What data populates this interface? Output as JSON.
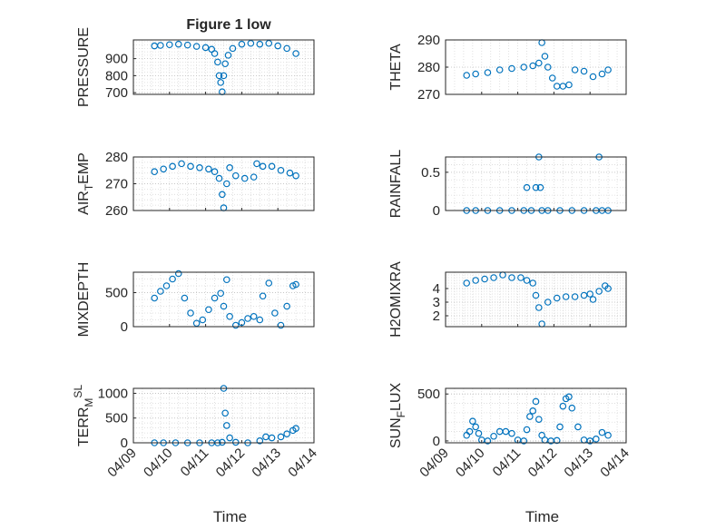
{
  "figure_title": "Figure 1 low",
  "x_axis_label": "Time",
  "x_tick_labels": [
    "04/09",
    "04/10",
    "04/11",
    "04/12",
    "04/13",
    "04/14"
  ],
  "colors": {
    "marker": "#0072BD",
    "axes": "#262626",
    "grid": "#d9d9d9"
  },
  "chart_data": [
    {
      "type": "scatter",
      "name": "PRESSURE",
      "ylabel_parts": [
        {
          "t": "PRESSURE"
        }
      ],
      "ylim": [
        690,
        1010
      ],
      "yticks": [
        700,
        800,
        900
      ],
      "minor_grid": true,
      "x": [
        "04/09 14:00",
        "04/09 18:00",
        "04/10 00:00",
        "04/10 06:00",
        "04/10 12:00",
        "04/10 18:00",
        "04/11 00:00",
        "04/11 04:00",
        "04/11 06:00",
        "04/11 08:00",
        "04/11 09:00",
        "04/11 10:00",
        "04/11 11:00",
        "04/11 12:00",
        "04/11 13:00",
        "04/11 15:00",
        "04/11 18:00",
        "04/12 00:00",
        "04/12 06:00",
        "04/12 12:00",
        "04/12 18:00",
        "04/13 00:00",
        "04/13 06:00",
        "04/13 12:00"
      ],
      "y": [
        975,
        978,
        982,
        985,
        980,
        972,
        965,
        955,
        930,
        880,
        800,
        760,
        705,
        800,
        870,
        920,
        960,
        985,
        990,
        985,
        990,
        975,
        960,
        930
      ]
    },
    {
      "type": "scatter",
      "name": "THETA",
      "ylabel_parts": [
        {
          "t": "THETA"
        }
      ],
      "ylim": [
        270,
        290
      ],
      "yticks": [
        270,
        280,
        290
      ],
      "minor_grid": false,
      "x": [
        "04/09 14:00",
        "04/09 20:00",
        "04/10 04:00",
        "04/10 12:00",
        "04/10 20:00",
        "04/11 04:00",
        "04/11 10:00",
        "04/11 14:00",
        "04/11 16:00",
        "04/11 18:00",
        "04/11 20:00",
        "04/11 23:00",
        "04/12 02:00",
        "04/12 06:00",
        "04/12 10:00",
        "04/12 14:00",
        "04/12 20:00",
        "04/13 02:00",
        "04/13 08:00",
        "04/13 12:00"
      ],
      "y": [
        277,
        277.5,
        278,
        279,
        279.5,
        280,
        280.5,
        281.5,
        289,
        284,
        280,
        276,
        273,
        273,
        273.5,
        279,
        278.5,
        276.5,
        277.5,
        279
      ]
    },
    {
      "type": "scatter",
      "name": "AIR_TEMP",
      "ylabel_parts": [
        {
          "t": "AIR"
        },
        {
          "t": "T",
          "sub": true
        },
        {
          "t": "EMP"
        }
      ],
      "ylim": [
        260,
        280
      ],
      "yticks": [
        260,
        270,
        280
      ],
      "minor_grid": true,
      "x": [
        "04/09 14:00",
        "04/09 20:00",
        "04/10 02:00",
        "04/10 08:00",
        "04/10 14:00",
        "04/10 20:00",
        "04/11 02:00",
        "04/11 06:00",
        "04/11 09:00",
        "04/11 11:00",
        "04/11 12:00",
        "04/11 14:00",
        "04/11 16:00",
        "04/11 20:00",
        "04/12 02:00",
        "04/12 08:00",
        "04/12 10:00",
        "04/12 14:00",
        "04/12 20:00",
        "04/13 02:00",
        "04/13 08:00",
        "04/13 12:00"
      ],
      "y": [
        274.5,
        275.5,
        276.5,
        277.5,
        276.5,
        276,
        275.5,
        274.5,
        272,
        266,
        261,
        270,
        276,
        273,
        272,
        272.5,
        277.5,
        276.5,
        276.5,
        275,
        274,
        273
      ]
    },
    {
      "type": "scatter",
      "name": "RAINFALL",
      "ylabel_parts": [
        {
          "t": "RAINFALL"
        }
      ],
      "ylim": [
        0,
        0.7
      ],
      "yticks": [
        0,
        0.5
      ],
      "minor_grid": true,
      "x": [
        "04/09 14:00",
        "04/09 20:00",
        "04/10 04:00",
        "04/10 12:00",
        "04/10 20:00",
        "04/11 04:00",
        "04/11 06:00",
        "04/11 09:00",
        "04/11 12:00",
        "04/11 14:00",
        "04/11 15:00",
        "04/11 16:00",
        "04/11 20:00",
        "04/12 04:00",
        "04/12 12:00",
        "04/12 20:00",
        "04/13 04:00",
        "04/13 06:00",
        "04/13 08:00",
        "04/13 12:00"
      ],
      "y": [
        0,
        0,
        0,
        0,
        0,
        0,
        0.3,
        0,
        0.3,
        0.7,
        0.3,
        0,
        0,
        0,
        0,
        0,
        0,
        0.7,
        0,
        0
      ]
    },
    {
      "type": "scatter",
      "name": "MIXDEPTH",
      "ylabel_parts": [
        {
          "t": "MIXDEPTH"
        }
      ],
      "ylim": [
        0,
        800
      ],
      "yticks": [
        0,
        500
      ],
      "minor_grid": true,
      "x": [
        "04/09 14:00",
        "04/09 18:00",
        "04/09 22:00",
        "04/10 02:00",
        "04/10 06:00",
        "04/10 10:00",
        "04/10 14:00",
        "04/10 18:00",
        "04/10 22:00",
        "04/11 02:00",
        "04/11 06:00",
        "04/11 10:00",
        "04/11 12:00",
        "04/11 14:00",
        "04/11 16:00",
        "04/11 20:00",
        "04/12 00:00",
        "04/12 04:00",
        "04/12 08:00",
        "04/12 12:00",
        "04/12 14:00",
        "04/12 18:00",
        "04/12 22:00",
        "04/13 02:00",
        "04/13 06:00",
        "04/13 10:00",
        "04/13 12:00"
      ],
      "y": [
        420,
        520,
        600,
        700,
        780,
        420,
        200,
        50,
        100,
        250,
        420,
        490,
        300,
        690,
        150,
        20,
        60,
        120,
        150,
        100,
        450,
        640,
        200,
        20,
        300,
        600,
        620
      ]
    },
    {
      "type": "scatter",
      "name": "H2OMIXRA",
      "ylabel_parts": [
        {
          "t": "H2OMIXRA"
        }
      ],
      "ylim": [
        1.2,
        5.2
      ],
      "yticks": [
        2,
        3,
        4
      ],
      "minor_grid": true,
      "x": [
        "04/09 14:00",
        "04/09 20:00",
        "04/10 02:00",
        "04/10 08:00",
        "04/10 14:00",
        "04/10 20:00",
        "04/11 02:00",
        "04/11 06:00",
        "04/11 10:00",
        "04/11 12:00",
        "04/11 14:00",
        "04/11 16:00",
        "04/11 20:00",
        "04/12 02:00",
        "04/12 08:00",
        "04/12 14:00",
        "04/12 20:00",
        "04/13 00:00",
        "04/13 02:00",
        "04/13 06:00",
        "04/13 10:00",
        "04/13 12:00"
      ],
      "y": [
        4.4,
        4.6,
        4.7,
        4.8,
        5.0,
        4.8,
        4.8,
        4.6,
        4.4,
        3.5,
        2.6,
        1.4,
        3.0,
        3.3,
        3.4,
        3.4,
        3.5,
        3.6,
        3.2,
        3.8,
        4.2,
        4.0
      ]
    },
    {
      "type": "scatter",
      "name": "TERR_MSL",
      "ylabel_parts": [
        {
          "t": "TERR"
        },
        {
          "t": "M",
          "sub": true
        },
        {
          "t": "SL",
          "sup": true
        }
      ],
      "ylim": [
        0,
        1100
      ],
      "yticks": [
        0,
        500,
        1000
      ],
      "minor_grid": true,
      "x": [
        "04/09 14:00",
        "04/09 20:00",
        "04/10 04:00",
        "04/10 12:00",
        "04/10 20:00",
        "04/11 04:00",
        "04/11 08:00",
        "04/11 11:00",
        "04/11 12:00",
        "04/11 13:00",
        "04/11 14:00",
        "04/11 16:00",
        "04/11 20:00",
        "04/12 04:00",
        "04/12 12:00",
        "04/12 16:00",
        "04/12 20:00",
        "04/13 02:00",
        "04/13 06:00",
        "04/13 10:00",
        "04/13 12:00"
      ],
      "y": [
        0,
        0,
        0,
        0,
        0,
        0,
        0,
        10,
        1100,
        600,
        350,
        100,
        10,
        0,
        40,
        120,
        100,
        120,
        180,
        250,
        290
      ]
    },
    {
      "type": "scatter",
      "name": "SUN_FLUX",
      "ylabel_parts": [
        {
          "t": "SUN"
        },
        {
          "t": "F",
          "sub": true
        },
        {
          "t": "LUX"
        }
      ],
      "ylim": [
        -20,
        560
      ],
      "yticks": [
        0,
        500
      ],
      "minor_grid": true,
      "x": [
        "04/09 14:00",
        "04/09 16:00",
        "04/09 18:00",
        "04/09 20:00",
        "04/09 22:00",
        "04/10 00:00",
        "04/10 04:00",
        "04/10 08:00",
        "04/10 12:00",
        "04/10 16:00",
        "04/10 20:00",
        "04/11 00:00",
        "04/11 04:00",
        "04/11 06:00",
        "04/11 08:00",
        "04/11 10:00",
        "04/11 12:00",
        "04/11 14:00",
        "04/11 16:00",
        "04/11 18:00",
        "04/11 22:00",
        "04/12 02:00",
        "04/12 04:00",
        "04/12 06:00",
        "04/12 08:00",
        "04/12 10:00",
        "04/12 12:00",
        "04/12 16:00",
        "04/12 20:00",
        "04/13 00:00",
        "04/13 04:00",
        "04/13 08:00",
        "04/13 12:00"
      ],
      "y": [
        60,
        100,
        210,
        150,
        80,
        10,
        0,
        50,
        100,
        100,
        80,
        10,
        0,
        120,
        260,
        320,
        420,
        230,
        60,
        10,
        0,
        5,
        150,
        370,
        450,
        470,
        350,
        150,
        10,
        0,
        20,
        90,
        60
      ]
    }
  ]
}
